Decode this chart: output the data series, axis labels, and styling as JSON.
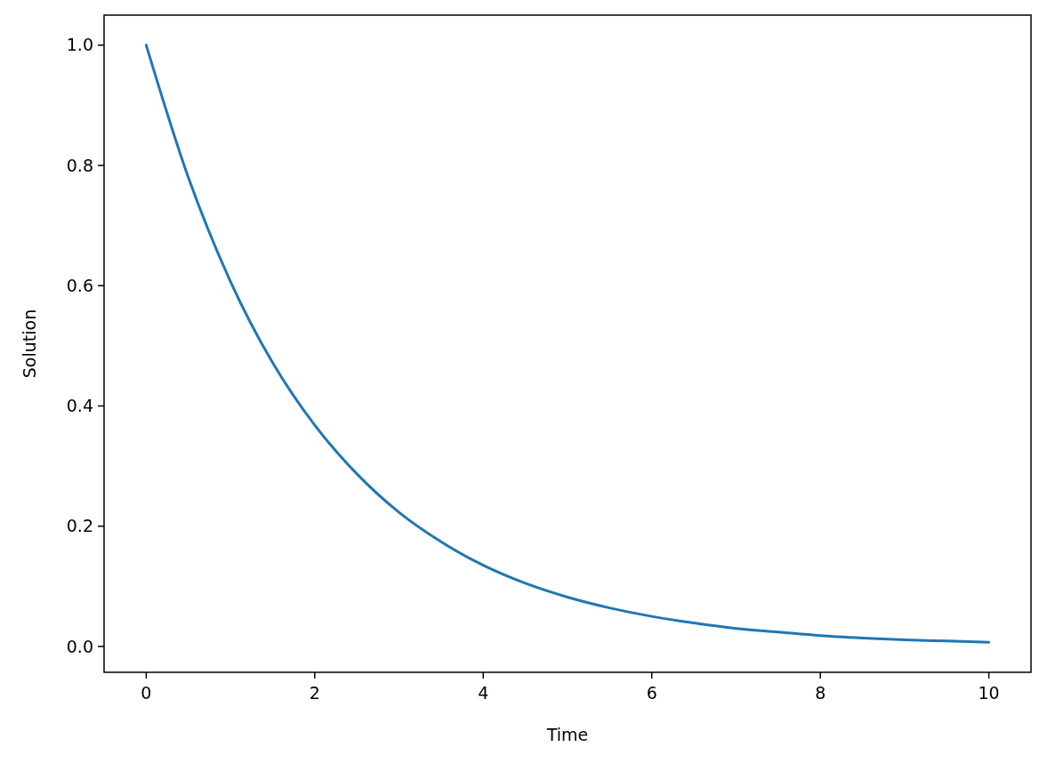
{
  "chart_data": {
    "type": "line",
    "xlabel": "Time",
    "ylabel": "Solution",
    "x": [
      0,
      0.5,
      1,
      1.5,
      2,
      2.5,
      3,
      3.5,
      4,
      4.5,
      5,
      5.5,
      6,
      6.5,
      7,
      7.5,
      8,
      8.5,
      9,
      9.5,
      10
    ],
    "series": [
      {
        "color": "#1f77b4",
        "values": [
          1.0,
          0.78,
          0.607,
          0.472,
          0.368,
          0.287,
          0.223,
          0.174,
          0.135,
          0.105,
          0.082,
          0.064,
          0.05,
          0.039,
          0.03,
          0.024,
          0.018,
          0.014,
          0.011,
          0.009,
          0.007
        ]
      }
    ],
    "xlim": [
      -0.5,
      10.5
    ],
    "xticks": [
      0,
      2,
      4,
      6,
      8,
      10
    ],
    "ylim": [
      -0.043,
      1.05
    ],
    "yticks": [
      {
        "value": 0,
        "label": "0.0"
      },
      {
        "value": 0.2,
        "label": "0.2"
      },
      {
        "value": 0.4,
        "label": "0.4"
      },
      {
        "value": 0.6,
        "label": "0.6"
      },
      {
        "value": 0.8,
        "label": "0.8"
      },
      {
        "value": 1,
        "label": "1.0"
      }
    ],
    "grid": false,
    "marker": "none",
    "line_style": "solid"
  }
}
